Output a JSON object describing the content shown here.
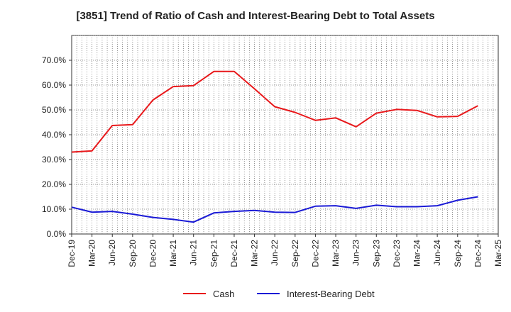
{
  "chart_data": {
    "type": "line",
    "title": "[3851]  Trend of Ratio of Cash and Interest-Bearing Debt to Total Assets",
    "xlabel": "",
    "ylabel": "",
    "ylim": [
      0,
      0.8
    ],
    "yticks": [
      "0.0%",
      "10.0%",
      "20.0%",
      "30.0%",
      "40.0%",
      "50.0%",
      "60.0%",
      "70.0%"
    ],
    "x": [
      "Dec-19",
      "Mar-20",
      "Jun-20",
      "Sep-20",
      "Dec-20",
      "Mar-21",
      "Jun-21",
      "Sep-21",
      "Dec-21",
      "Mar-22",
      "Jun-22",
      "Sep-22",
      "Dec-22",
      "Mar-23",
      "Jun-23",
      "Sep-23",
      "Dec-23",
      "Mar-24",
      "Jun-24",
      "Sep-24",
      "Dec-24",
      "Mar-25"
    ],
    "grid": true,
    "legend_position": "bottom",
    "series": [
      {
        "name": "Cash",
        "color": "#e8181b",
        "values": [
          0.33,
          0.335,
          0.437,
          0.441,
          0.54,
          0.594,
          0.598,
          0.655,
          0.655,
          0.585,
          0.513,
          0.49,
          0.458,
          0.468,
          0.432,
          0.487,
          0.502,
          0.498,
          0.472,
          0.474,
          0.517,
          null
        ]
      },
      {
        "name": "Interest-Bearing Debt",
        "color": "#1a1ad6",
        "values": [
          0.108,
          0.088,
          0.091,
          0.08,
          0.067,
          0.059,
          0.048,
          0.085,
          0.091,
          0.095,
          0.088,
          0.087,
          0.112,
          0.114,
          0.103,
          0.116,
          0.11,
          0.11,
          0.114,
          0.136,
          0.15,
          null
        ]
      }
    ]
  }
}
